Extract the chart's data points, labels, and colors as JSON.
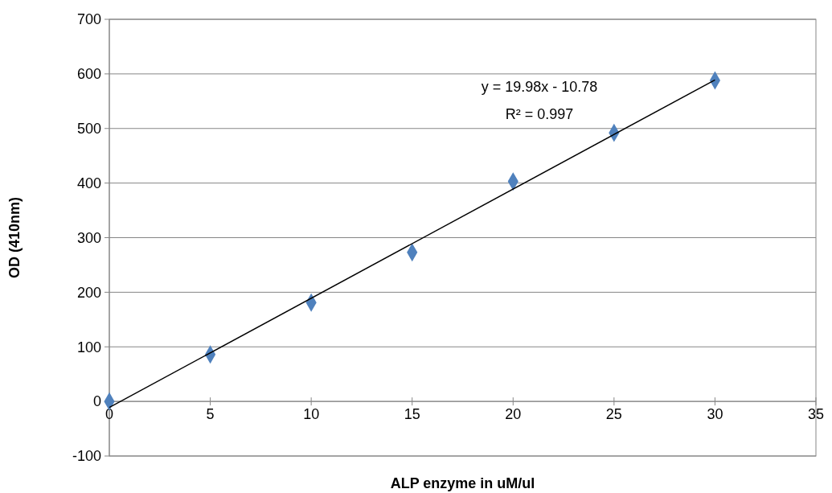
{
  "chart_data": {
    "type": "scatter",
    "xlabel": "ALP enzyme in uM/ul",
    "ylabel": "OD (410nm)",
    "x": [
      0,
      5,
      10,
      15,
      20,
      25,
      30
    ],
    "series": [
      {
        "color": "#4f81bd",
        "marker": "diamond",
        "values": [
          0,
          86,
          181,
          273,
          403,
          492,
          588
        ]
      },
      {
        "type": "line",
        "color": "#000000",
        "x": [
          0,
          30
        ],
        "values": [
          -11,
          589
        ]
      }
    ],
    "xlim": [
      0,
      35
    ],
    "xticks": [
      0,
      5,
      10,
      15,
      20,
      25,
      30,
      35
    ],
    "ylim": [
      -100,
      700
    ],
    "yticks": [
      -100,
      0,
      100,
      200,
      300,
      400,
      500,
      600,
      700
    ],
    "grid": "y",
    "annotations": [
      "y = 19.98x - 10.78",
      "R² = 0.997"
    ]
  }
}
